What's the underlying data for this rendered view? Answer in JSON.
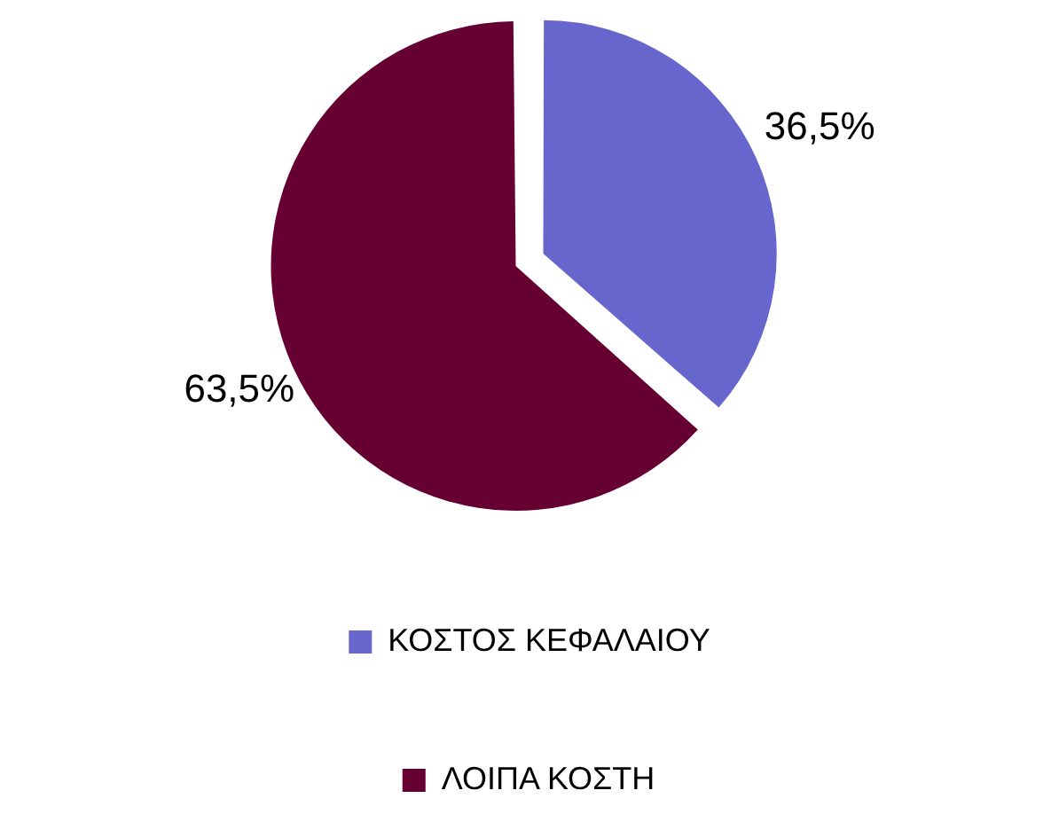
{
  "chart_data": {
    "type": "pie",
    "categories": [
      "ΚΟΣΤΟΣ ΚΕΦΑΛΑΙΟΥ",
      "ΛΟΙΠΑ ΚΟΣΤΗ"
    ],
    "values": [
      36.5,
      63.5
    ],
    "colors": [
      "#6666cc",
      "#660033"
    ],
    "value_labels": [
      "36,5%",
      "63,5%"
    ],
    "legend": "bottom"
  }
}
